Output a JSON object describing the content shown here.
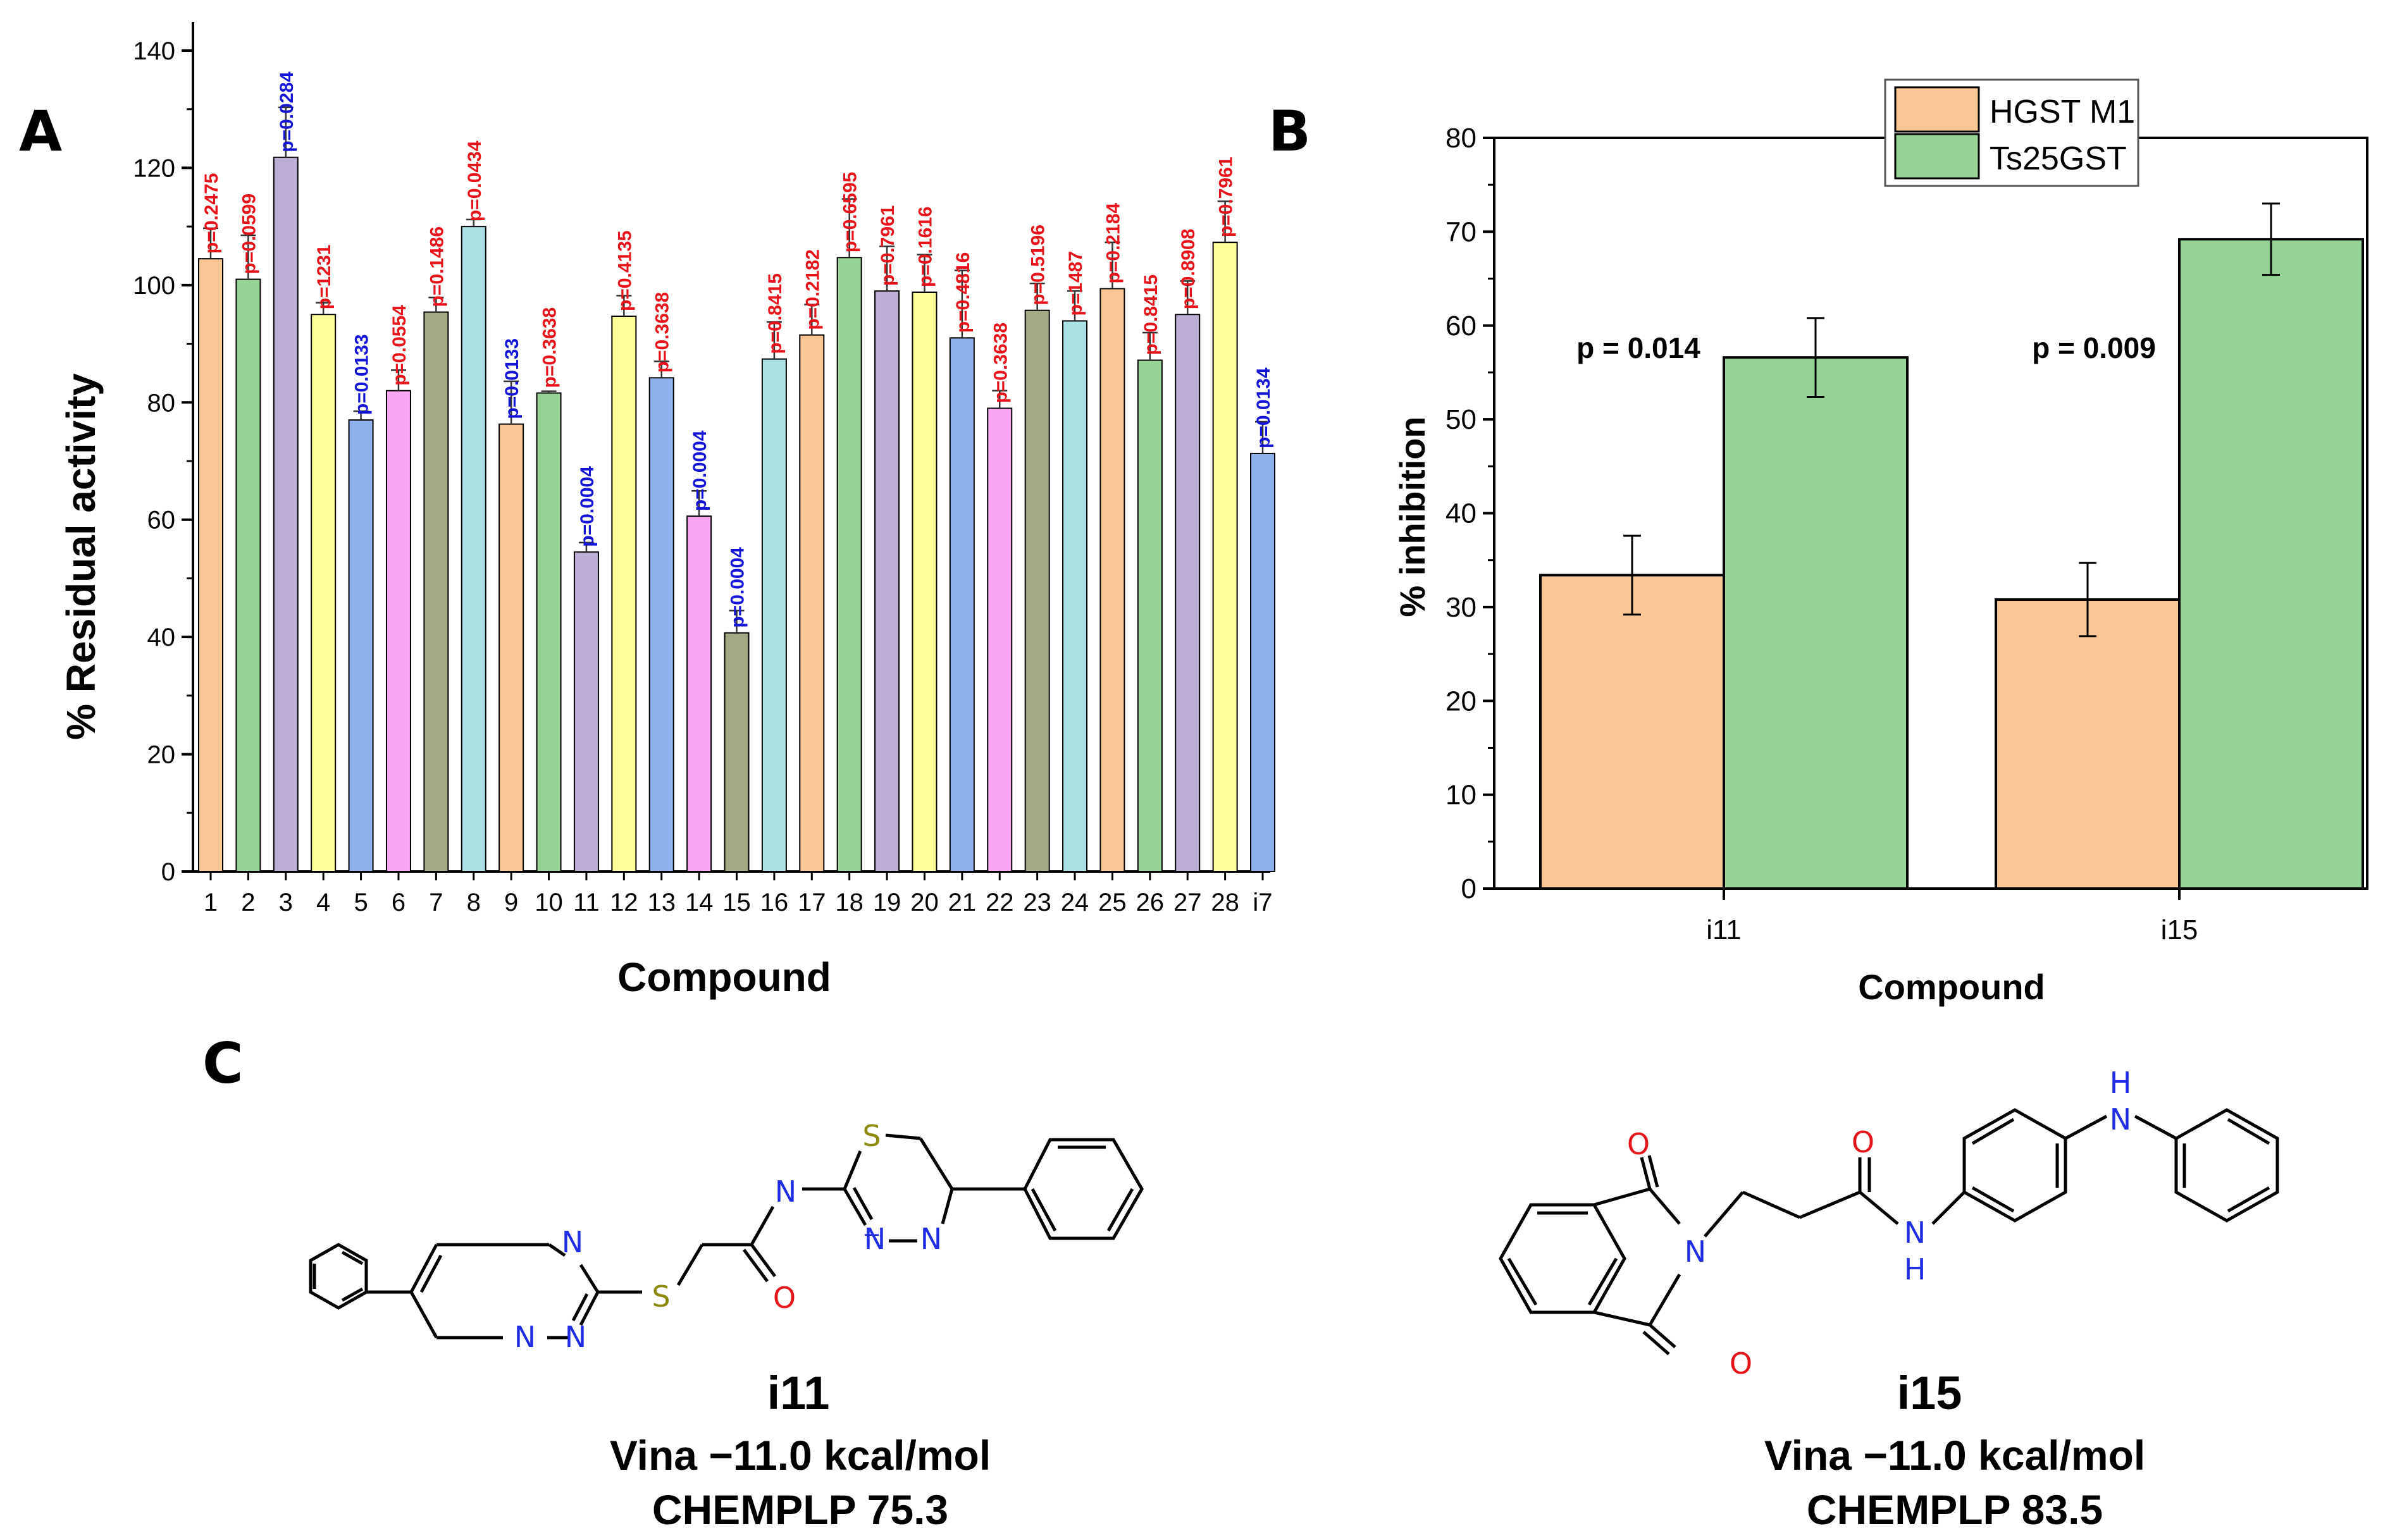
{
  "panels": {
    "a": "A",
    "b": "B",
    "c": "C"
  },
  "colors": {
    "orange": "#F9C796",
    "green": "#96D496",
    "purple": "#BDAED6",
    "yellow": "#FFFF99",
    "blue": "#8FB1EE",
    "pink": "#F9A6F3",
    "olive": "#A4A885",
    "cyan": "#A9E1E5",
    "p_red": "#E8121A",
    "p_blue": "#1414D8",
    "atom_n": "#1F2CE5",
    "atom_o": "#E5141A",
    "atom_s": "#8E8A10"
  },
  "chart_data": [
    {
      "type": "bar",
      "panel": "A",
      "title": "",
      "xlabel": "Compound",
      "ylabel": "% Residual activity",
      "ylim": [
        0,
        140
      ],
      "yticks": [
        "0",
        "20",
        "40",
        "60",
        "80",
        "100",
        "120",
        "140"
      ],
      "categories": [
        "1",
        "2",
        "3",
        "4",
        "5",
        "6",
        "7",
        "8",
        "9",
        "10",
        "11",
        "12",
        "13",
        "14",
        "15",
        "16",
        "17",
        "18",
        "19",
        "20",
        "21",
        "22",
        "23",
        "24",
        "25",
        "26",
        "27",
        "28",
        "i7"
      ],
      "values": [
        104.5,
        101,
        121.8,
        95,
        77,
        82,
        95.4,
        110,
        76.3,
        81.6,
        54.5,
        94.7,
        84.2,
        60.6,
        40.7,
        87.4,
        91.5,
        104.7,
        99,
        98.8,
        91,
        79,
        95.7,
        93.9,
        99.4,
        87.2,
        95,
        107.3,
        71.3
      ],
      "errors": [
        5.2,
        7.5,
        8.5,
        2,
        1.5,
        3.5,
        2.5,
        1.2,
        7.3,
        0.3,
        1.6,
        3.5,
        2.8,
        4.3,
        3.8,
        6.3,
        5.2,
        10,
        7.6,
        6.4,
        11.5,
        3,
        4.6,
        5.1,
        7.9,
        4.7,
        5.7,
        7,
        5.4
      ],
      "bar_colors": [
        "orange",
        "green",
        "purple",
        "yellow",
        "blue",
        "pink",
        "olive",
        "cyan",
        "orange",
        "green",
        "purple",
        "yellow",
        "blue",
        "pink",
        "olive",
        "cyan",
        "orange",
        "green",
        "purple",
        "yellow",
        "blue",
        "pink",
        "olive",
        "cyan",
        "orange",
        "green",
        "purple",
        "yellow",
        "blue"
      ],
      "p_labels": [
        "p=0.2475",
        "p=0.0599",
        "p=0.0284",
        "p=1231",
        "p=0.0133",
        "p=0.0554",
        "p=0.1486",
        "p=0.0434",
        "p=0.0133",
        "p=0.3638",
        "p=0.0004",
        "p=0.4135",
        "p=0.3638",
        "p=0.0004",
        "p=0.0004",
        "p=0.8415",
        "p=0.2182",
        "p=0.6595",
        "p=0.7961",
        "p=0.1616",
        "p=0.4816",
        "p=0.3638",
        "p=0.5196",
        "p=1487",
        "p=0.2184",
        "p=0.8415",
        "p=0.8908",
        "p=0.7961",
        "p=0.0134"
      ],
      "p_colors": [
        "p_red",
        "p_red",
        "p_blue",
        "p_red",
        "p_blue",
        "p_red",
        "p_red",
        "p_red",
        "p_blue",
        "p_red",
        "p_blue",
        "p_red",
        "p_red",
        "p_blue",
        "p_blue",
        "p_red",
        "p_red",
        "p_red",
        "p_red",
        "p_red",
        "p_red",
        "p_red",
        "p_red",
        "p_red",
        "p_red",
        "p_red",
        "p_red",
        "p_red",
        "p_blue"
      ]
    },
    {
      "type": "bar",
      "panel": "B",
      "title": "",
      "xlabel": "Compound",
      "ylabel": "% inhibition",
      "ylim": [
        0,
        80
      ],
      "yticks": [
        "0",
        "10",
        "20",
        "30",
        "40",
        "50",
        "60",
        "70",
        "80"
      ],
      "categories": [
        "i11",
        "i15"
      ],
      "series": [
        {
          "name": "HGST M1",
          "color": "orange",
          "values": [
            33.4,
            30.8
          ],
          "errors": [
            4.2,
            3.9
          ]
        },
        {
          "name": "Ts25GST",
          "color": "green",
          "values": [
            56.6,
            69.2
          ],
          "errors": [
            4.2,
            3.8
          ]
        }
      ],
      "annotations": [
        "p = 0.014",
        "p = 0.009"
      ],
      "legend_position": "top-right"
    }
  ],
  "molecules": {
    "i11": {
      "atoms": {
        "n_ring_top": "N",
        "n_ring_bl": "N",
        "n_ring_br": "N",
        "s_link": "S",
        "o_carbonyl": "O",
        "n_amide": "N",
        "s_thiadiazine": "S",
        "n_td_left": "N",
        "n_td_right": "N"
      },
      "name": "i11",
      "vina": "Vina −11.0 kcal/mol",
      "chemplp": "CHEMPLP 75.3"
    },
    "i15": {
      "atoms": {
        "o_top": "O",
        "n_imide": "N",
        "o_bottom": "O",
        "o_amide": "O",
        "n_amide": "N",
        "h_amide": "H",
        "nh_top_n": "N",
        "nh_top_h": "H"
      },
      "name": "i15",
      "vina": "Vina −11.0 kcal/mol",
      "chemplp": "CHEMPLP 83.5"
    }
  }
}
